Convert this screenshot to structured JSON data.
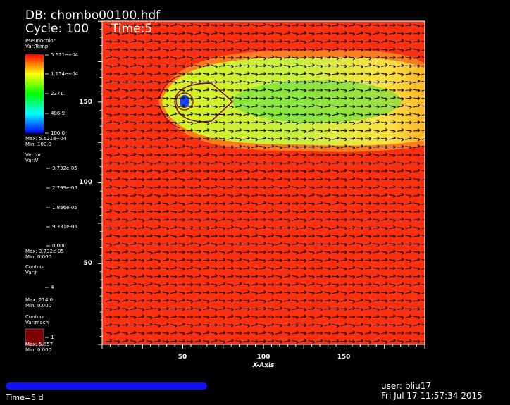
{
  "header": {
    "db": "DB: chombo00100.hdf",
    "cycle": "Cycle: 100",
    "time": "Time:5"
  },
  "legends": [
    {
      "plot": "Pseudocolor",
      "var": "Var:Temp",
      "labels": [
        "5.621e+04",
        "1.154e+04",
        "2371.",
        "486.9",
        "100.0"
      ],
      "max": "Max: 5.621e+04",
      "min": "Min: 100.0"
    },
    {
      "plot": "Vector",
      "var": "Var:V",
      "labels": [
        "3.732e-05",
        "2.799e-05",
        "1.866e-05",
        "9.331e-06",
        "0.000"
      ],
      "max": "Max: 3.732e-05",
      "min": "Min: 0.000"
    },
    {
      "plot": "Contour",
      "var": "Var:r",
      "labels": [
        "4"
      ],
      "max": "Max: 214.0",
      "min": "Min: 0.000"
    },
    {
      "plot": "Contour",
      "var": "Var:mach",
      "labels": [
        "1"
      ],
      "max": "Max: 5.857",
      "min": "Min: 0.000"
    }
  ],
  "axes": {
    "x_label": "X-Axis",
    "x_ticks": [
      "50",
      "100",
      "150"
    ],
    "y_ticks": [
      "150",
      "100",
      "50"
    ]
  },
  "footer": {
    "time_slider": "Time=5 d",
    "user": "user: bliu17",
    "date": "Fri Jul 17 11:57:34 2015"
  }
}
